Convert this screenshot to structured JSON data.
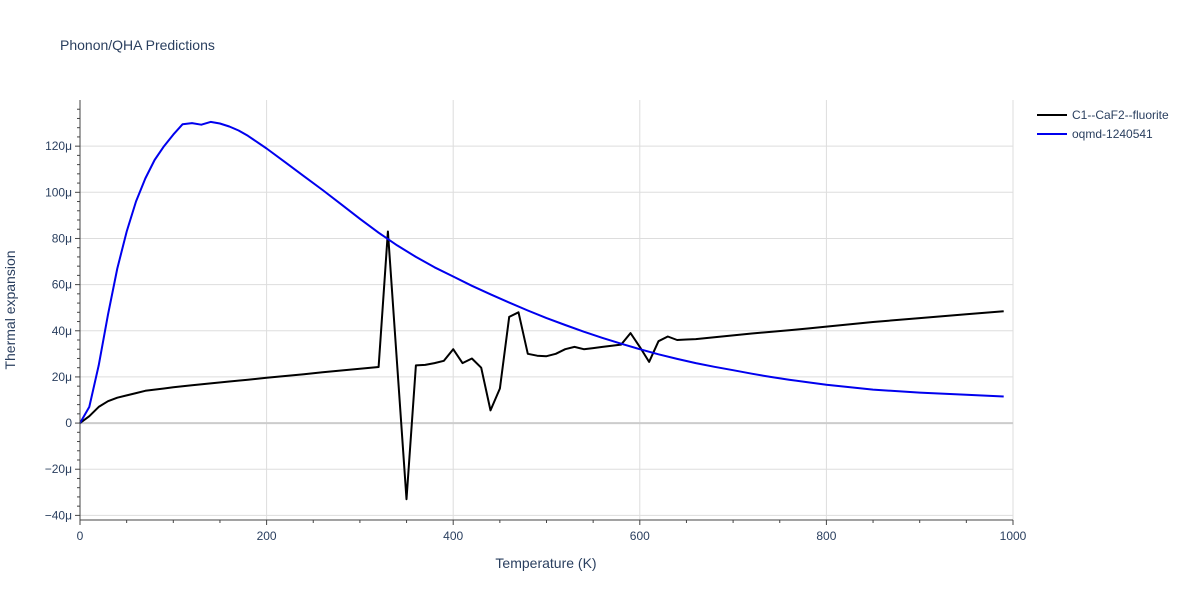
{
  "chart_data": {
    "type": "line",
    "title": "Phonon/QHA Predictions",
    "xlabel": "Temperature (K)",
    "ylabel": "Thermal expansion",
    "xlim": [
      0,
      1000
    ],
    "ylim": [
      -42,
      140
    ],
    "x_ticks": [
      0,
      200,
      400,
      600,
      800,
      1000
    ],
    "x_tick_labels": [
      "0",
      "200",
      "400",
      "600",
      "800",
      "1000"
    ],
    "y_ticks": [
      -40,
      -20,
      0,
      20,
      40,
      60,
      80,
      100,
      120
    ],
    "y_tick_labels": [
      "−40μ",
      "−20μ",
      "0",
      "20μ",
      "40μ",
      "60μ",
      "80μ",
      "100μ",
      "120μ"
    ],
    "grid": true,
    "legend_position": "top-right",
    "series": [
      {
        "name": "C1--CaF2--fluorite",
        "color": "#000000",
        "x": [
          0,
          10,
          20,
          30,
          40,
          50,
          60,
          70,
          80,
          90,
          100,
          110,
          120,
          140,
          160,
          180,
          200,
          220,
          240,
          260,
          280,
          300,
          320,
          330,
          340,
          350,
          360,
          370,
          380,
          390,
          400,
          410,
          420,
          430,
          440,
          450,
          460,
          470,
          480,
          490,
          500,
          510,
          520,
          530,
          540,
          550,
          560,
          570,
          580,
          590,
          600,
          610,
          620,
          630,
          640,
          650,
          660,
          680,
          700,
          720,
          740,
          760,
          780,
          800,
          850,
          900,
          950,
          990
        ],
        "y": [
          0,
          3,
          7,
          9.5,
          11,
          12,
          13,
          14,
          14.5,
          15,
          15.5,
          16,
          16.4,
          17.2,
          18,
          18.8,
          19.6,
          20.4,
          21.2,
          22,
          22.8,
          23.5,
          24.3,
          83,
          25,
          -33,
          25,
          25.2,
          26,
          27,
          32,
          26,
          28,
          24,
          5.5,
          15,
          46,
          48,
          30,
          29.2,
          29,
          30,
          32,
          33,
          32,
          32.5,
          33,
          33.5,
          34,
          39,
          33,
          26.5,
          35.5,
          37.5,
          36,
          36.2,
          36.4,
          37.2,
          38,
          38.8,
          39.5,
          40.2,
          41,
          41.8,
          43.8,
          45.5,
          47.2,
          48.5
        ]
      },
      {
        "name": "oqmd-1240541",
        "color": "#0000ee",
        "x": [
          0,
          10,
          20,
          30,
          40,
          50,
          60,
          70,
          80,
          90,
          100,
          110,
          120,
          130,
          140,
          150,
          160,
          170,
          180,
          200,
          220,
          240,
          260,
          280,
          300,
          320,
          340,
          360,
          380,
          400,
          420,
          440,
          460,
          480,
          500,
          520,
          540,
          560,
          580,
          600,
          620,
          640,
          660,
          680,
          700,
          720,
          740,
          760,
          780,
          800,
          850,
          900,
          950,
          990
        ],
        "y": [
          0,
          7,
          25,
          47,
          67,
          83,
          96,
          106,
          114,
          120,
          125,
          129.5,
          130,
          129.3,
          130.5,
          129.8,
          128.5,
          126.8,
          124.5,
          119,
          113,
          107,
          101,
          94.8,
          88.5,
          82.5,
          77,
          72,
          67.5,
          63.5,
          59.5,
          55.8,
          52.2,
          48.8,
          45.5,
          42.5,
          39.6,
          36.9,
          34.4,
          32,
          29.8,
          27.8,
          26,
          24.4,
          22.9,
          21.4,
          20,
          18.8,
          17.7,
          16.6,
          14.5,
          13.2,
          12.3,
          11.5
        ]
      }
    ]
  }
}
